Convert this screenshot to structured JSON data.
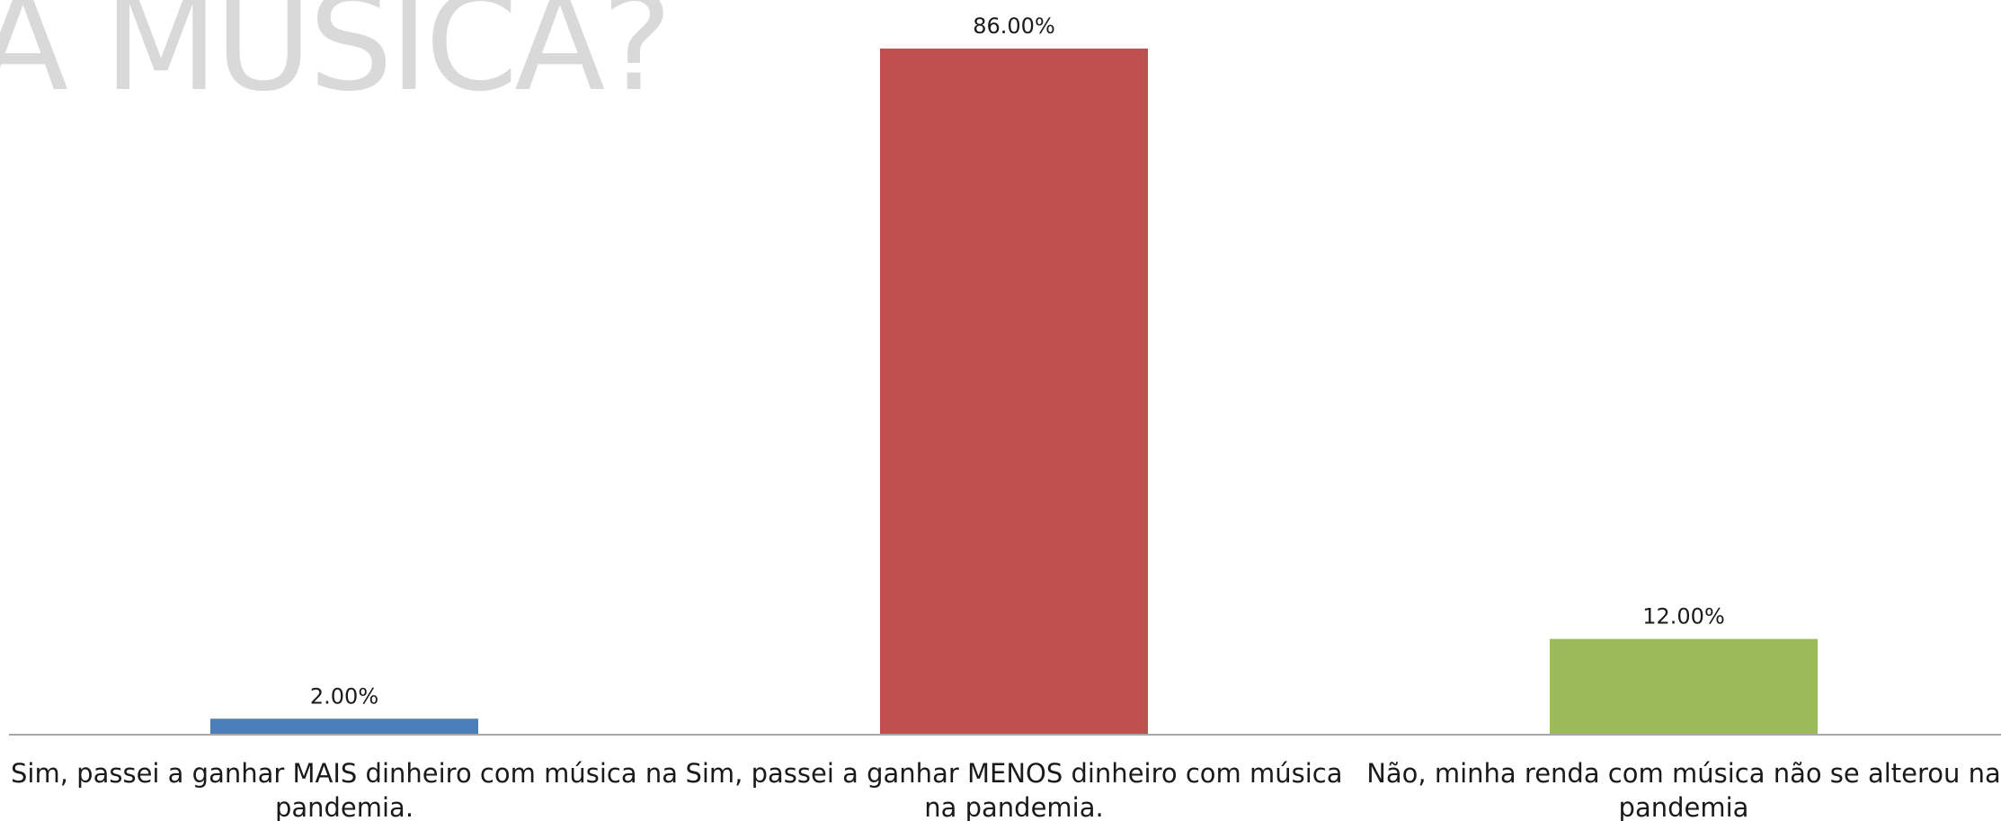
{
  "background_title": "A MÚSICA?",
  "chart_data": {
    "type": "bar",
    "categories": [
      [
        "Sim, passei a ganhar MAIS dinheiro com música na",
        "pandemia."
      ],
      [
        "Sim, passei a ganhar MENOS dinheiro com música",
        "na pandemia."
      ],
      [
        "Não, minha renda com música não se alterou na",
        "pandemia"
      ]
    ],
    "values": [
      2.0,
      86.0,
      12.0
    ],
    "value_labels": [
      "2.00%",
      "86.00%",
      "12.00%"
    ],
    "colors": [
      "#4a7ebb",
      "#c0504d",
      "#9bbb59"
    ],
    "axis_color": "#a6a6a6",
    "ylim": [
      0,
      100
    ],
    "title": "",
    "xlabel": "",
    "ylabel": "",
    "grid": false,
    "legend": "none"
  }
}
